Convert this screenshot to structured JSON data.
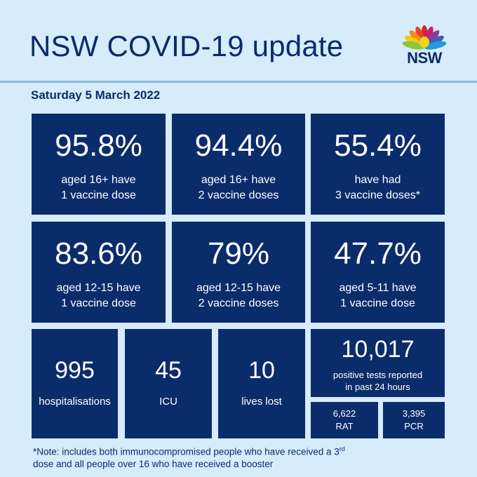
{
  "header": {
    "title": "NSW COVID-19 update",
    "logo_text": "NSW",
    "date": "Saturday 5 March 2022"
  },
  "vaccination": {
    "row1": [
      {
        "value": "95.8%",
        "line1": "aged 16+ have",
        "line2": "1 vaccine dose"
      },
      {
        "value": "94.4%",
        "line1": "aged 16+ have",
        "line2": "2 vaccine doses"
      },
      {
        "value": "55.4%",
        "line1": "have had",
        "line2": "3 vaccine doses*"
      }
    ],
    "row2": [
      {
        "value": "83.6%",
        "line1": "aged 12-15 have",
        "line2": "1 vaccine dose"
      },
      {
        "value": "79%",
        "line1": "aged 12-15 have",
        "line2": "2 vaccine doses"
      },
      {
        "value": "47.7%",
        "line1": "aged 5-11 have",
        "line2": "1 vaccine dose"
      }
    ]
  },
  "stats": {
    "hospitalisations": {
      "value": "995",
      "label": "hospitalisations"
    },
    "icu": {
      "value": "45",
      "label": "ICU"
    },
    "lives_lost": {
      "value": "10",
      "label": "lives lost"
    },
    "positive_tests": {
      "value": "10,017",
      "line1": "positive tests reported",
      "line2": "in past 24 hours"
    },
    "rat": {
      "value": "6,622",
      "label": "RAT"
    },
    "pcr": {
      "value": "3,395",
      "label": "PCR"
    }
  },
  "footnote": {
    "line1_pre": "*Note: includes both immunocompromised  people who have received a 3",
    "line1_sup": "rd",
    "line2": "dose and all people over 16 who have received a booster"
  },
  "colors": {
    "background": "#d6ecfb",
    "tile": "#0b2c6b",
    "text_dark": "#0c2a6b"
  }
}
